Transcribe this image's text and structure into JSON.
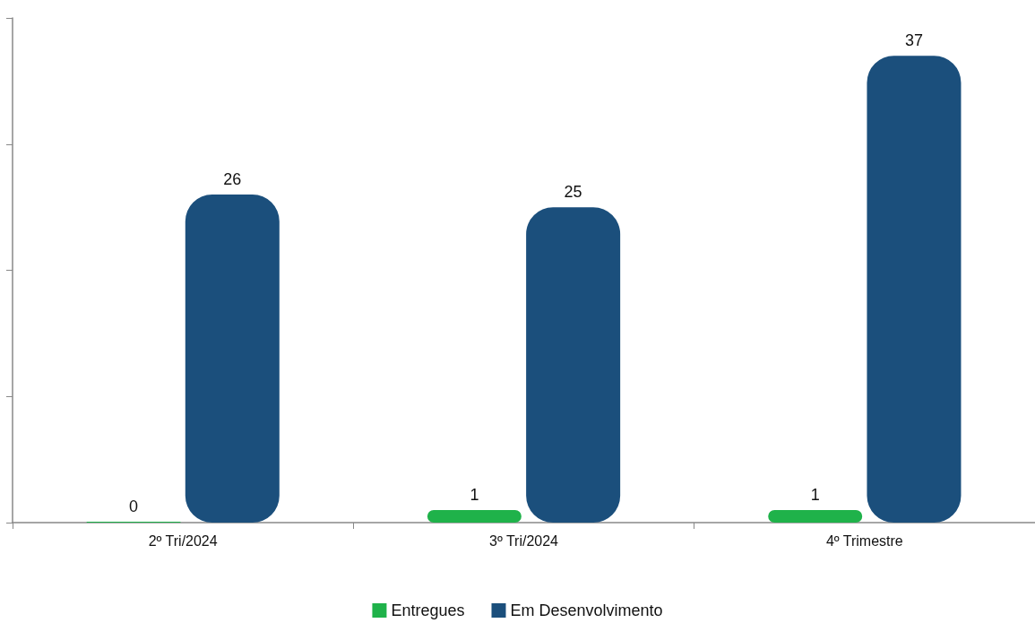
{
  "chart_data": {
    "type": "bar",
    "categories": [
      "2º Tri/2024",
      "3º Tri/2024",
      "4º Trimestre"
    ],
    "series": [
      {
        "name": "Entregues",
        "color": "#1fb24a",
        "values": [
          0,
          1,
          1
        ]
      },
      {
        "name": "Em Desenvolvimento",
        "color": "#1b4f7c",
        "values": [
          26,
          25,
          37
        ]
      }
    ],
    "ylim": [
      0,
      40
    ],
    "yticks": [
      {
        "value": 0,
        "label": null
      },
      {
        "value": 10,
        "label": null
      },
      {
        "value": 20,
        "label": null
      },
      {
        "value": 30,
        "label": null
      },
      {
        "value": 40,
        "label": null
      }
    ],
    "tick_labels": "x",
    "data_labels": true,
    "grid": false,
    "legend": "bottom"
  }
}
